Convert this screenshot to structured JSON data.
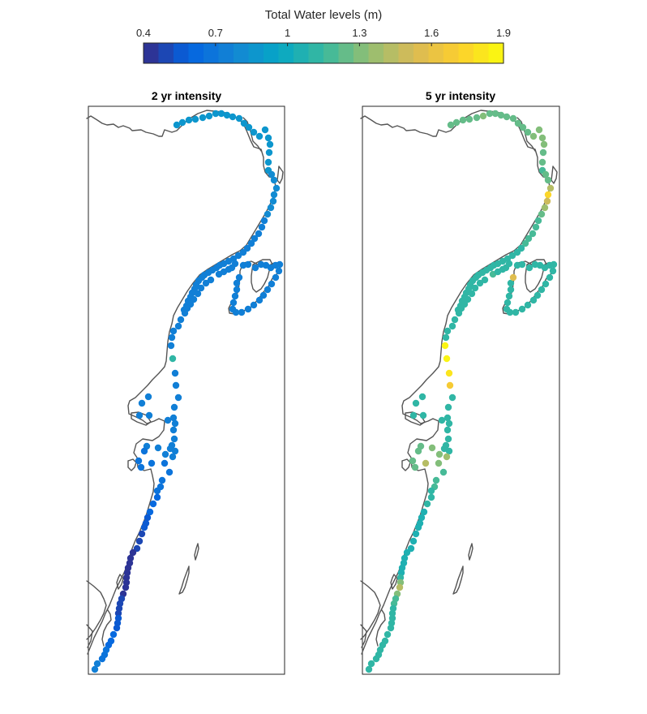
{
  "chart_data": {
    "type": "scatter",
    "colorbar": {
      "title": "Total Water levels (m)",
      "range": [
        0.4,
        1.9
      ],
      "ticks": [
        0.4,
        0.7,
        1,
        1.3,
        1.6,
        1.9
      ],
      "tick_labels": [
        "0.4",
        "0.7",
        "1",
        "1.3",
        "1.6",
        "1.9"
      ],
      "levels": 24,
      "colormap": [
        "#352a87",
        "#0363e1",
        "#1485d4",
        "#06a7c6",
        "#38b99e",
        "#92bf73",
        "#d9ba56",
        "#fcce2e",
        "#f9fb0e"
      ]
    },
    "panels": [
      {
        "title": "2 yr intensity",
        "values": [
          0.85,
          0.85,
          0.86,
          0.88,
          0.88,
          0.87,
          0.86,
          0.86,
          0.86,
          0.87,
          0.87,
          0.88,
          0.88,
          0.88,
          0.88,
          0.88,
          0.86,
          0.86,
          0.85,
          0.84,
          0.84,
          0.83,
          0.82,
          0.82,
          0.81,
          0.8,
          0.79,
          0.78,
          0.77,
          0.77,
          0.76,
          0.75,
          0.75,
          0.74,
          0.74,
          0.74,
          0.74,
          0.74,
          0.74,
          0.73,
          0.73,
          0.73,
          0.72,
          0.72,
          0.72,
          0.72,
          0.72,
          0.72,
          0.72,
          0.72,
          0.72,
          0.72,
          0.72,
          0.72,
          0.72,
          0.72,
          0.72,
          0.72,
          0.72,
          0.72,
          0.72,
          0.72,
          0.72,
          0.72,
          0.72,
          0.72,
          0.72,
          0.72,
          0.72,
          0.72,
          0.72,
          0.72,
          0.72,
          0.72,
          0.73,
          0.73,
          0.73,
          0.73,
          0.73,
          0.73,
          0.73,
          0.73,
          0.73,
          0.73,
          0.73,
          0.73,
          0.73,
          0.73,
          0.73,
          0.73,
          0.73,
          0.73,
          0.73,
          0.73,
          0.73,
          1.15,
          0.73,
          0.73,
          0.73,
          0.74,
          0.74,
          0.74,
          0.74,
          0.74,
          0.74,
          0.74,
          0.74,
          0.74,
          0.74,
          0.73,
          0.73,
          0.73,
          0.73,
          0.72,
          0.72,
          0.72,
          0.71,
          0.71,
          0.7,
          0.7,
          0.69,
          0.68,
          0.67,
          0.66,
          0.65,
          0.64,
          0.62,
          0.6,
          0.58,
          0.56,
          0.54,
          0.52,
          0.5,
          0.48,
          0.46,
          0.45,
          0.44,
          0.42,
          0.42,
          0.42,
          0.43,
          0.44,
          0.45,
          0.47,
          0.49,
          0.5,
          0.52,
          0.54,
          0.56,
          0.58,
          0.6,
          0.62,
          0.64,
          0.66,
          0.68,
          0.7,
          0.72,
          0.74,
          0.75,
          0.75,
          0.76,
          0.77,
          0.77,
          0.78,
          0.78,
          0.78,
          0.77,
          0.76,
          0.75,
          0.74,
          0.74
        ]
      },
      {
        "title": "5 yr intensity",
        "values": [
          1.22,
          1.23,
          1.24,
          1.25,
          1.27,
          1.28,
          1.27,
          1.26,
          1.25,
          1.24,
          1.24,
          1.25,
          1.26,
          1.27,
          1.28,
          1.32,
          1.3,
          1.28,
          1.24,
          1.22,
          1.2,
          1.22,
          1.26,
          1.45,
          1.75,
          1.5,
          1.35,
          1.25,
          1.2,
          1.19,
          1.18,
          1.17,
          1.16,
          1.15,
          1.15,
          1.15,
          1.14,
          1.14,
          1.14,
          1.14,
          1.13,
          1.13,
          1.12,
          1.12,
          1.12,
          1.12,
          1.12,
          1.12,
          1.12,
          1.12,
          1.12,
          1.12,
          1.12,
          1.12,
          1.12,
          1.12,
          1.12,
          1.12,
          1.12,
          1.12,
          1.12,
          1.12,
          1.12,
          1.12,
          1.12,
          1.12,
          1.12,
          1.12,
          1.12,
          1.12,
          1.12,
          1.12,
          1.12,
          1.12,
          1.12,
          1.12,
          1.12,
          1.12,
          1.55,
          1.17,
          1.15,
          1.15,
          1.15,
          1.15,
          1.15,
          1.15,
          1.15,
          1.15,
          1.15,
          1.15,
          1.15,
          1.15,
          1.15,
          1.15,
          1.85,
          1.88,
          1.82,
          1.65,
          1.15,
          1.15,
          1.15,
          1.15,
          1.15,
          1.15,
          1.15,
          1.15,
          1.15,
          1.15,
          1.15,
          1.15,
          1.15,
          1.15,
          1.35,
          1.3,
          1.28,
          1.26,
          1.24,
          1.22,
          1.22,
          1.45,
          1.3,
          1.2,
          1.18,
          1.16,
          1.14,
          1.12,
          1.1,
          1.08,
          1.06,
          1.05,
          1.04,
          1.04,
          1.04,
          1.05,
          1.05,
          1.06,
          1.06,
          1.07,
          1.07,
          1.1,
          1.3,
          1.4,
          1.3,
          1.2,
          1.17,
          1.15,
          1.12,
          1.1,
          1.12,
          1.12,
          1.12,
          1.12,
          1.12,
          1.12,
          1.12,
          1.12,
          1.12,
          1.12,
          1.12,
          1.12,
          1.12,
          1.12,
          1.12,
          1.12,
          1.12,
          1.12,
          1.12
        ]
      }
    ]
  }
}
